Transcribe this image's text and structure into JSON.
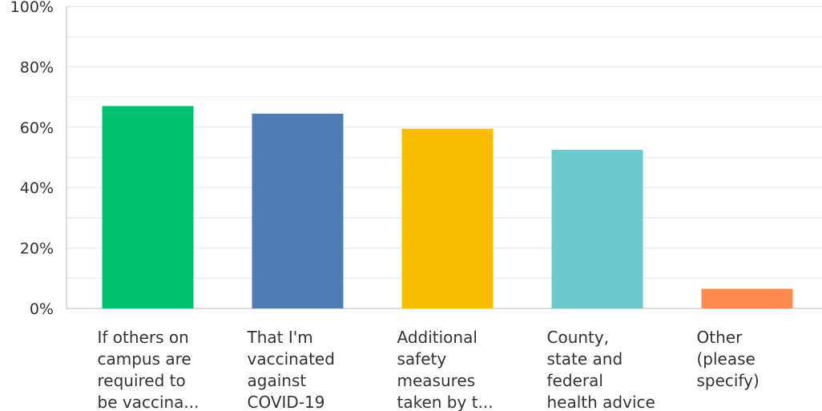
{
  "chart_data": {
    "type": "bar",
    "categories": [
      [
        "If others on",
        "campus are",
        "required to",
        "be vaccina..."
      ],
      [
        "That I'm",
        "vaccinated",
        "against",
        "COVID-19"
      ],
      [
        "Additional",
        "safety",
        "measures",
        "taken by t..."
      ],
      [
        "County,",
        "state and",
        "federal",
        "health advice"
      ],
      [
        "Other",
        "(please",
        "specify)"
      ]
    ],
    "values": [
      67,
      64.5,
      59.5,
      52.5,
      6.5
    ],
    "colors": [
      "#00bf6f",
      "#507cb6",
      "#f9be00",
      "#6bc8cd",
      "#ff8b4f"
    ],
    "ylim": [
      0,
      100
    ],
    "yticks": [
      "0%",
      "20%",
      "40%",
      "60%",
      "80%",
      "100%"
    ],
    "grid": true,
    "legend": "none"
  }
}
